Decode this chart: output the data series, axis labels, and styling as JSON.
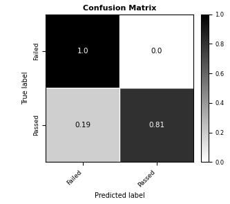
{
  "title": "Confusion Matrix",
  "matrix": [
    [
      1.0,
      0.0
    ],
    [
      0.19,
      0.81
    ]
  ],
  "classes": [
    "Failed",
    "Passed"
  ],
  "xlabel": "Predicted label",
  "ylabel": "True label",
  "cmap": "gray_r",
  "threshold": 0.5,
  "figsize": [
    3.33,
    2.95
  ],
  "dpi": 100,
  "title_fontsize": 8,
  "label_fontsize": 7,
  "tick_fontsize": 6.5,
  "cell_fontsize": 7.5,
  "colorbar_ticks": [
    0.0,
    0.2,
    0.4,
    0.6,
    0.8,
    1.0
  ],
  "colorbar_tick_fontsize": 6,
  "cell_text": [
    [
      "1.0",
      "0.0"
    ],
    [
      "0.19",
      "0.81"
    ]
  ],
  "text_colors": [
    [
      "white",
      "black"
    ],
    [
      "black",
      "white"
    ]
  ]
}
